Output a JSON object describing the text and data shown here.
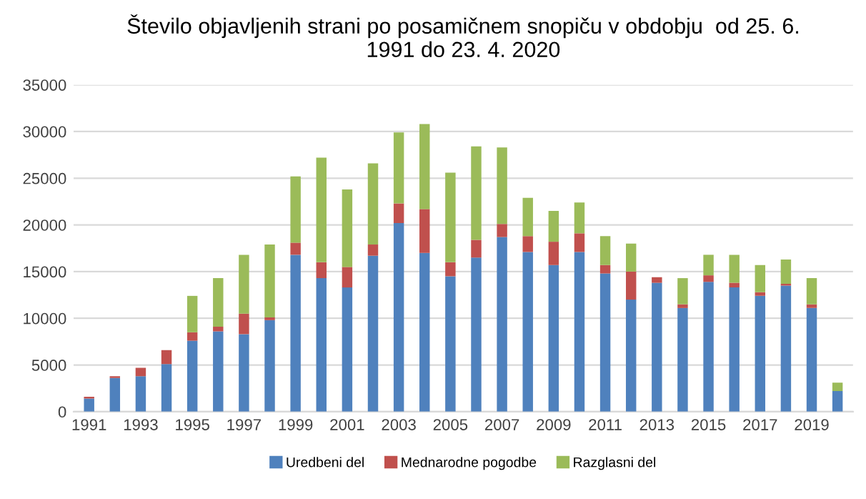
{
  "chart_data": {
    "type": "bar",
    "title": "Število objavljenih strani po posamičnem snopiču v obdobju  od 25. 6.\n1991 do 23. 4. 2020",
    "categories": [
      "1991",
      null,
      "1993",
      null,
      "1995",
      null,
      "1997",
      null,
      "1999",
      null,
      "2001",
      null,
      "2003",
      null,
      "2005",
      null,
      "2007",
      null,
      "2009",
      null,
      "2011",
      null,
      "2013",
      null,
      "2015",
      null,
      "2017",
      null,
      "2019",
      null
    ],
    "stacked": true,
    "series": [
      {
        "name": "Uredbeni del",
        "color": "#4f81bd",
        "values": [
          1400,
          3600,
          3800,
          5100,
          7600,
          8600,
          8300,
          9800,
          16800,
          14300,
          13300,
          16700,
          20200,
          17000,
          14500,
          16500,
          18700,
          17100,
          15700,
          17100,
          14800,
          12000,
          13800,
          11100,
          13900,
          13300,
          12400,
          13500,
          11100,
          2200
        ]
      },
      {
        "name": "Mednarodne pogodbe",
        "color": "#c0504d",
        "values": [
          200,
          200,
          900,
          1500,
          900,
          500,
          2200,
          300,
          1300,
          1700,
          2200,
          1200,
          2100,
          4700,
          1500,
          1900,
          1400,
          1700,
          2500,
          2000,
          900,
          3000,
          600,
          400,
          700,
          500,
          400,
          200,
          400,
          0
        ]
      },
      {
        "name": "Razglasni del",
        "color": "#9bbb59",
        "values": [
          0,
          0,
          0,
          0,
          3900,
          5200,
          6300,
          7800,
          7100,
          11200,
          8300,
          8700,
          7600,
          9100,
          9600,
          10000,
          8200,
          4100,
          3300,
          3300,
          3100,
          3000,
          0,
          2800,
          2200,
          3000,
          2900,
          2600,
          2800,
          900
        ]
      }
    ],
    "ylim": [
      0,
      35000
    ],
    "yticks": [
      0,
      5000,
      10000,
      15000,
      20000,
      25000,
      30000,
      35000
    ],
    "grid": "y",
    "legend": "bottom"
  }
}
